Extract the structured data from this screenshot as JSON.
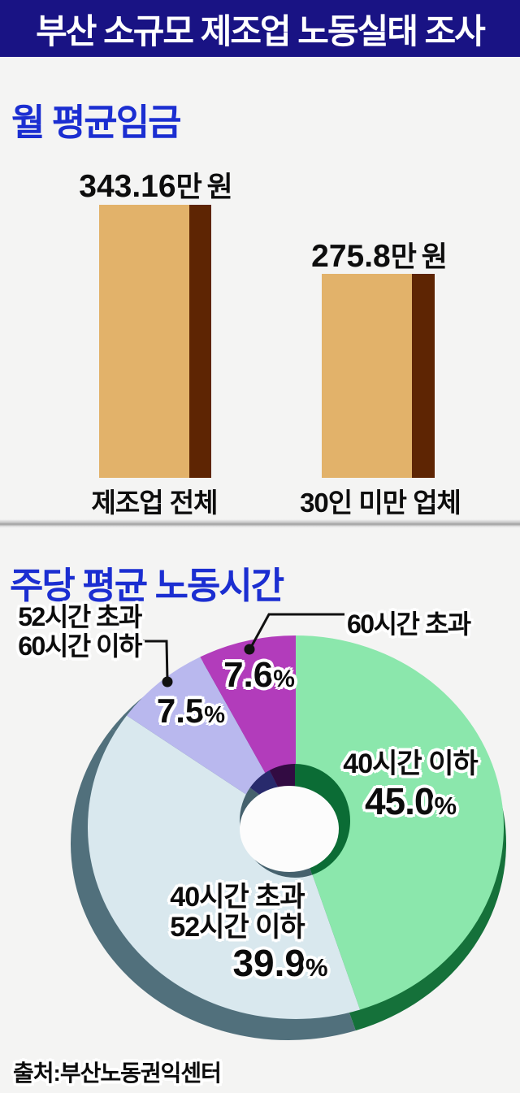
{
  "header": {
    "title": "부산 소규모 제조업 노동실태 조사"
  },
  "strings": {
    "percent": "%"
  },
  "colors": {
    "title_bar_bg": "#191384",
    "heading_blue": "#1B2ED1",
    "background": "#F4F4F3",
    "bar_fill": "#E2B26A",
    "bar_shadow": "#5E2503",
    "leader_line": "#111111"
  },
  "wage_section": {
    "heading": "월 평균임금",
    "bars": [
      {
        "value_text": "343.16",
        "unit": "만 원",
        "label": "제조업 전체"
      },
      {
        "value_text": "275.8",
        "unit": "만 원",
        "label": "30인 미만 업체"
      }
    ]
  },
  "hours_section": {
    "heading": "주당 평균 노동시간",
    "pale_line1": "40시간 초과",
    "pale_line2": "52시간 이하",
    "callout_left_line1": "52시간 초과",
    "callout_left_line2": "60시간 이하"
  },
  "footer": {
    "source": "출처:부산노동권익센터"
  },
  "chart_data": [
    {
      "type": "bar",
      "title": "월 평균임금",
      "categories": [
        "제조업 전체",
        "30인 미만 업체"
      ],
      "values": [
        343.16,
        275.8
      ],
      "unit": "만 원",
      "bar_color": "#E2B26A",
      "bar_shadow_color": "#5E2503"
    },
    {
      "type": "pie",
      "title": "주당 평균 노동시간",
      "donut": true,
      "start_angle_deg": 0,
      "clockwise": true,
      "slices": [
        {
          "label": "40시간 이하",
          "value": 45.0,
          "pct_text": "45.0",
          "color": "#8BE7AC",
          "side_color": "#15713A",
          "inner_color": "#0B6C35"
        },
        {
          "label": "40시간 초과 52시간 이하",
          "value": 39.9,
          "pct_text": "39.9",
          "color": "#D9E8EE",
          "side_color": "#51707C",
          "inner_color": "#45616D"
        },
        {
          "label": "52시간 초과 60시간 이하",
          "value": 7.5,
          "pct_text": "7.5",
          "color": "#B9B8EE",
          "side_color": "#51707C",
          "inner_color": "#282A6C"
        },
        {
          "label": "60시간 초과",
          "value": 7.6,
          "pct_text": "7.6",
          "color": "#B23CBB",
          "side_color": "#6B2470",
          "inner_color": "#320B42"
        }
      ],
      "hole_color": "#FCFCFC"
    }
  ]
}
